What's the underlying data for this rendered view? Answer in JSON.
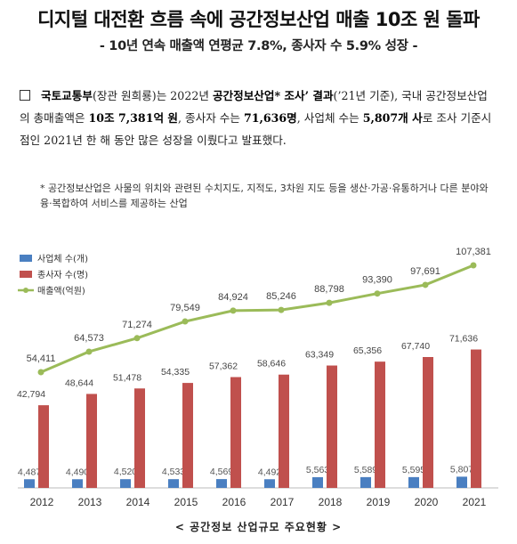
{
  "header": {
    "title": "디지털 대전환 흐름 속에 공간정보산업 매출 10조 원 돌파",
    "subtitle": "- 10년 연속 매출액 연평균 7.8%, 종사자 수 5.9% 성장 -"
  },
  "body": {
    "seg1": "국토교통부",
    "seg2": "(장관 원희룡)는 2022년 ",
    "seg3": "공간정보산업* 조사’ 결과",
    "seg4": "(’21년 기준), 국내 공간정보산업의 총매출액은 ",
    "seg5": "10조 7,381억 원",
    "seg6": ", 종사자 수는 ",
    "seg7": "71,636명",
    "seg8": ", 사업체 수는 ",
    "seg9": "5,807개 사",
    "seg10": "로 조사 기준시점인 2021년 한 해 동안 많은 성장을 이뤘다고 발표했다."
  },
  "footnote": "* 공간정보산업은 사물의 위치와 관련된 수치지도, 지적도, 3차원 지도 등을 생산·가공·유통하거나 다른 분야와 융·복합하여 서비스를 제공하는 산업",
  "caption": "< 공간정보 산업규모 주요현황 >",
  "chart_data": {
    "type": "bar",
    "categories": [
      "2012",
      "2013",
      "2014",
      "2015",
      "2016",
      "2017",
      "2018",
      "2019",
      "2020",
      "2021"
    ],
    "series": [
      {
        "name": "사업체 수(개)",
        "kind": "bar",
        "color": "#4a7fc1",
        "values": [
          4487,
          4490,
          4520,
          4533,
          4569,
          4492,
          5563,
          5589,
          5595,
          5807
        ],
        "labels": [
          "4,487",
          "4,490",
          "4,520",
          "4,533",
          "4,569",
          "4,492",
          "5,563",
          "5,589",
          "5,595",
          "5,807"
        ]
      },
      {
        "name": "종사자 수(명)",
        "kind": "bar",
        "color": "#c0504d",
        "values": [
          42794,
          48644,
          51478,
          54335,
          57362,
          58646,
          63349,
          65356,
          67740,
          71636
        ],
        "labels": [
          "42,794",
          "48,644",
          "51,478",
          "54,335",
          "57,362",
          "58,646",
          "63,349",
          "65,356",
          "67,740",
          "71,636"
        ]
      },
      {
        "name": "매출액(억원)",
        "kind": "line",
        "color": "#9bbb59",
        "values": [
          54411,
          64573,
          71274,
          79549,
          84924,
          85246,
          88798,
          93390,
          97691,
          107381
        ],
        "labels": [
          "54,411",
          "64,573",
          "71,274",
          "79,549",
          "84,924",
          "85,246",
          "88,798",
          "93,390",
          "97,691",
          "107,381"
        ]
      }
    ],
    "legend_position": "top-left",
    "grid": false,
    "title": "",
    "xlabel": "",
    "ylabel": ""
  }
}
